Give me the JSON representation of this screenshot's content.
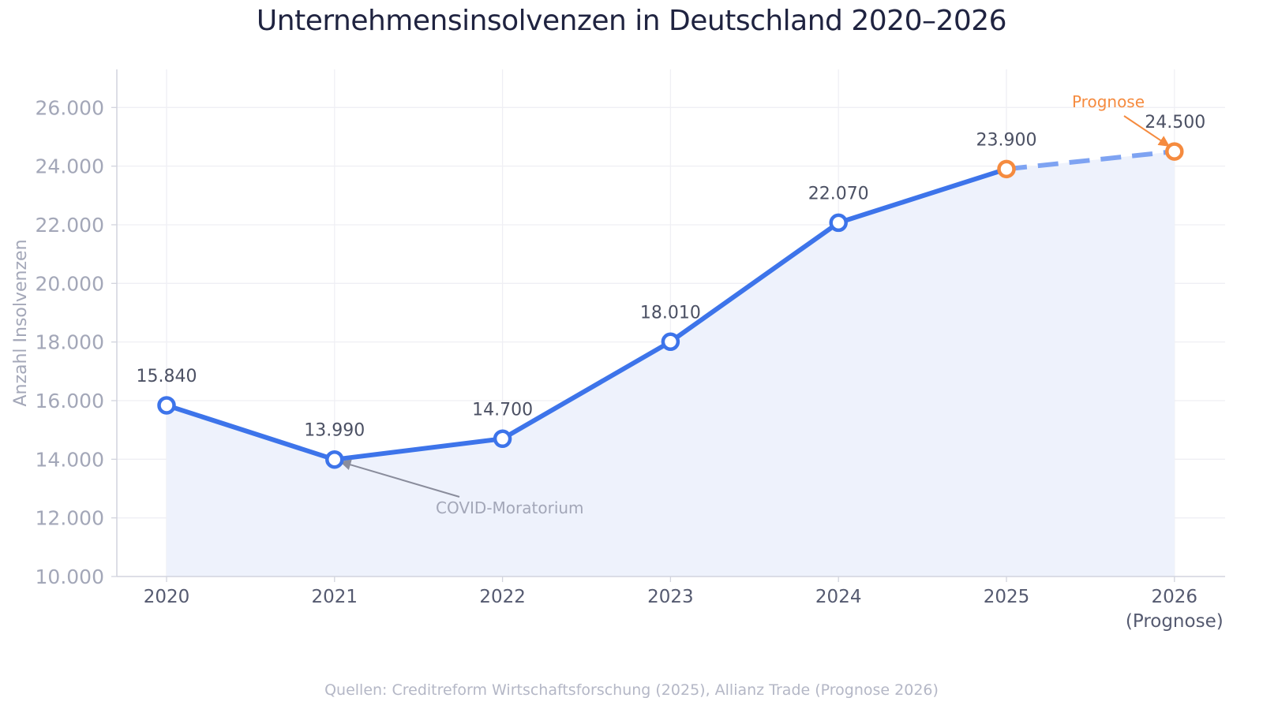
{
  "chart_data": {
    "type": "line",
    "title": "Unternehmensinsolvenzen in Deutschland 2020–2026",
    "ylabel": "Anzahl Insolvenzen",
    "xlabel": "",
    "source": "Quellen: Creditreform Wirtschaftsforschung (2025), Allianz Trade (Prognose 2026)",
    "categories": [
      "2020",
      "2021",
      "2022",
      "2023",
      "2024",
      "2025",
      "2026"
    ],
    "category_sublabels": [
      "",
      "",
      "",
      "",
      "",
      "",
      "(Prognose)"
    ],
    "series": [
      {
        "values": [
          15840,
          13990,
          14700,
          18010,
          22070,
          23900,
          24500
        ],
        "value_labels": [
          "15.840",
          "13.990",
          "14.700",
          "18.010",
          "22.070",
          "23.900",
          "24.500"
        ],
        "forecast_from_index": 5
      }
    ],
    "ylim": [
      10000,
      27300
    ],
    "yticks": [
      10000,
      12000,
      14000,
      16000,
      18000,
      20000,
      22000,
      24000,
      26000
    ],
    "ytick_labels": [
      "10.000",
      "12.000",
      "14.000",
      "16.000",
      "18.000",
      "20.000",
      "22.000",
      "24.000",
      "26.000"
    ],
    "grid": true,
    "area_fill": true,
    "annotations": [
      {
        "text": "COVID-Moratorium",
        "target_index": 1
      },
      {
        "text": "Prognose",
        "target_index": 6
      }
    ],
    "colors": {
      "line": "#3d74ea",
      "forecast_line": "#7ea3f2",
      "area": "#eef2fc",
      "forecast_marker": "#f58b3f",
      "label_2025": "#6a93ec",
      "annotation_covid": "#8a8d9c",
      "annotation_forecast": "#f58b3f"
    }
  }
}
